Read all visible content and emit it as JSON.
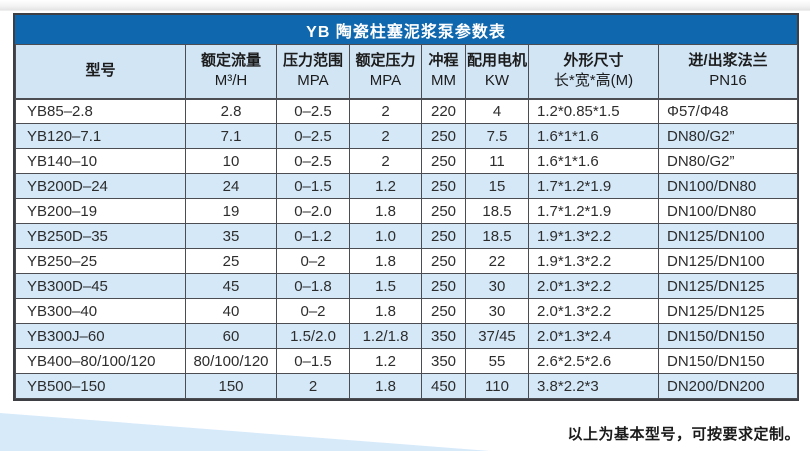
{
  "table": {
    "title": "YB 陶瓷柱塞泥浆泵参数表",
    "columns": [
      {
        "label": "型号",
        "sublabel": ""
      },
      {
        "label": "额定流量",
        "sublabel": "M³/H"
      },
      {
        "label": "压力范围",
        "sublabel": "MPA"
      },
      {
        "label": "额定压力",
        "sublabel": "MPA"
      },
      {
        "label": "冲程",
        "sublabel": "MM"
      },
      {
        "label": "配用电机",
        "sublabel": "KW"
      },
      {
        "label": "外形尺寸",
        "sublabel": "长*宽*高(M)"
      },
      {
        "label": "进/出浆法兰",
        "sublabel": "PN16"
      }
    ],
    "rows": [
      [
        "YB85–2.8",
        "2.8",
        "0–2.5",
        "2",
        "220",
        "4",
        "1.2*0.85*1.5",
        "Φ57/Φ48"
      ],
      [
        "YB120–7.1",
        "7.1",
        "0–2.5",
        "2",
        "250",
        "7.5",
        "1.6*1*1.6",
        "DN80/G2”"
      ],
      [
        "YB140–10",
        "10",
        "0–2.5",
        "2",
        "250",
        "11",
        "1.6*1*1.6",
        "DN80/G2”"
      ],
      [
        "YB200D–24",
        "24",
        "0–1.5",
        "1.2",
        "250",
        "15",
        "1.7*1.2*1.9",
        "DN100/DN80"
      ],
      [
        "YB200–19",
        "19",
        "0–2.0",
        "1.8",
        "250",
        "18.5",
        "1.7*1.2*1.9",
        "DN100/DN80"
      ],
      [
        "YB250D–35",
        "35",
        "0–1.2",
        "1.0",
        "250",
        "18.5",
        "1.9*1.3*2.2",
        "DN125/DN100"
      ],
      [
        "YB250–25",
        "25",
        "0–2",
        "1.8",
        "250",
        "22",
        "1.9*1.3*2.2",
        "DN125/DN100"
      ],
      [
        "YB300D–45",
        "45",
        "0–1.8",
        "1.5",
        "250",
        "30",
        "2.0*1.3*2.2",
        "DN125/DN125"
      ],
      [
        "YB300–40",
        "40",
        "0–2",
        "1.8",
        "250",
        "30",
        "2.0*1.3*2.2",
        "DN125/DN125"
      ],
      [
        "YB300J–60",
        "60",
        "1.5/2.0",
        "1.2/1.8",
        "350",
        "37/45",
        "2.0*1.3*2.4",
        "DN150/DN150"
      ],
      [
        "YB400–80/100/120",
        "80/100/120",
        "0–1.5",
        "1.2",
        "350",
        "55",
        "2.6*2.5*2.6",
        "DN150/DN150"
      ],
      [
        "YB500–150",
        "150",
        "2",
        "1.8",
        "450",
        "110",
        "3.8*2.2*3",
        "DN200/DN200"
      ]
    ]
  },
  "footer": {
    "note": "以上为基本型号，可按要求定制。"
  },
  "colors": {
    "title_bar": "#0f68ad",
    "header_bg": "#d2e5f5",
    "row_stripe": "#d4e8f8",
    "border": "#4b4d52",
    "wedge": "#d6eafa"
  }
}
